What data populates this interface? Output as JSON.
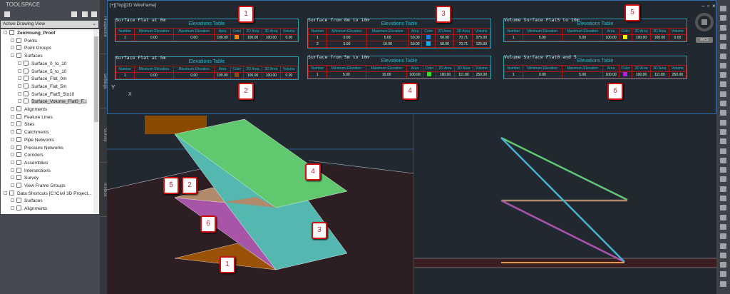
{
  "toolspace": {
    "title": "TOOLSPACE",
    "view": "Active Drawing View",
    "tree": [
      {
        "label": "Zeichnung_Proof",
        "level": 0,
        "bold": true
      },
      {
        "label": "Points",
        "level": 1
      },
      {
        "label": "Point Groups",
        "level": 1
      },
      {
        "label": "Surfaces",
        "level": 1
      },
      {
        "label": "Surface_0_to_10",
        "level": 2
      },
      {
        "label": "Surface_5_to_10",
        "level": 2
      },
      {
        "label": "Surface_Flat_0m",
        "level": 2
      },
      {
        "label": "Surface_Flat_5m",
        "level": 2
      },
      {
        "label": "Surface_Flat5_5to10",
        "level": 2
      },
      {
        "label": "Surface_Volume_Flat0_F...",
        "level": 2,
        "selected": true
      },
      {
        "label": "Alignments",
        "level": 1
      },
      {
        "label": "Feature Lines",
        "level": 1
      },
      {
        "label": "Sites",
        "level": 1
      },
      {
        "label": "Catchments",
        "level": 1
      },
      {
        "label": "Pipe Networks",
        "level": 1
      },
      {
        "label": "Pressure Networks",
        "level": 1
      },
      {
        "label": "Corridors",
        "level": 1
      },
      {
        "label": "Assemblies",
        "level": 1
      },
      {
        "label": "Intersections",
        "level": 1
      },
      {
        "label": "Survey",
        "level": 1
      },
      {
        "label": "View Frame Groups",
        "level": 1
      },
      {
        "label": "Data Shortcuts [C:\\Civil 3D Project...",
        "level": 0
      },
      {
        "label": "Surfaces",
        "level": 1
      },
      {
        "label": "Alignments",
        "level": 1
      }
    ],
    "tabs": [
      "Prospector",
      "Settings",
      "Survey",
      "Toolbox"
    ]
  },
  "viewport": {
    "label": "[+][Top][2D Wireframe]",
    "wcs": "WCS",
    "ucs_y": "Y",
    "ucs_x": "X"
  },
  "table_header": {
    "title": "Elevations Table",
    "columns": [
      "Number",
      "Minimum Elevation",
      "Maximum Elevation",
      "Area",
      "Color",
      "2D Area",
      "3D Area",
      "Volume"
    ]
  },
  "tables": [
    {
      "caption": "Surface Flat at 0m",
      "rows": [
        [
          "1",
          "0.00",
          "0.00",
          "100.00",
          "#f08a00",
          "100.00",
          "100.00",
          "0.00"
        ]
      ]
    },
    {
      "caption": "Surface Flat at 5m",
      "rows": [
        [
          "1",
          "0.00",
          "0.00",
          "100.00",
          "#8a4a10",
          "100.00",
          "100.00",
          "0.00"
        ]
      ]
    },
    {
      "caption": "Surface from 0m to 10m",
      "rows": [
        [
          "1",
          "0.00",
          "5.00",
          "50.00",
          "#1a7ff0",
          "50.00",
          "70.71",
          "375.00"
        ],
        [
          "2",
          "5.00",
          "10.00",
          "50.00",
          "#10b0f0",
          "50.00",
          "70.71",
          "125.00"
        ]
      ]
    },
    {
      "caption": "Surface from 5m to 10m",
      "rows": [
        [
          "1",
          "5.00",
          "10.00",
          "100.00",
          "#30e020",
          "100.00",
          "111.80",
          "250.00"
        ]
      ]
    },
    {
      "caption": "Volume Surface Flat5 to 10m",
      "rows": [
        [
          "1",
          "5.00",
          "5.00",
          "100.00",
          "#f0f000",
          "100.00",
          "100.00",
          "0.00"
        ]
      ]
    },
    {
      "caption": "Volume Surface Flat0 and 5",
      "rows": [
        [
          "1",
          "0.00",
          "5.00",
          "100.00",
          "#b020e0",
          "100.00",
          "111.80",
          "250.00"
        ]
      ]
    }
  ],
  "callouts": [
    "1",
    "2",
    "3",
    "4",
    "5",
    "6",
    "5",
    "2",
    "4",
    "6",
    "3",
    "1"
  ],
  "surface_colors": {
    "flat0": "#9a5208",
    "flat5": "#b08a6a",
    "s0_10": "#55b8b0",
    "s5_10": "#62c870",
    "vol_5_10": "#b08a6a",
    "vol_0_5": "#a855a8",
    "ground": "#2d1e24"
  }
}
